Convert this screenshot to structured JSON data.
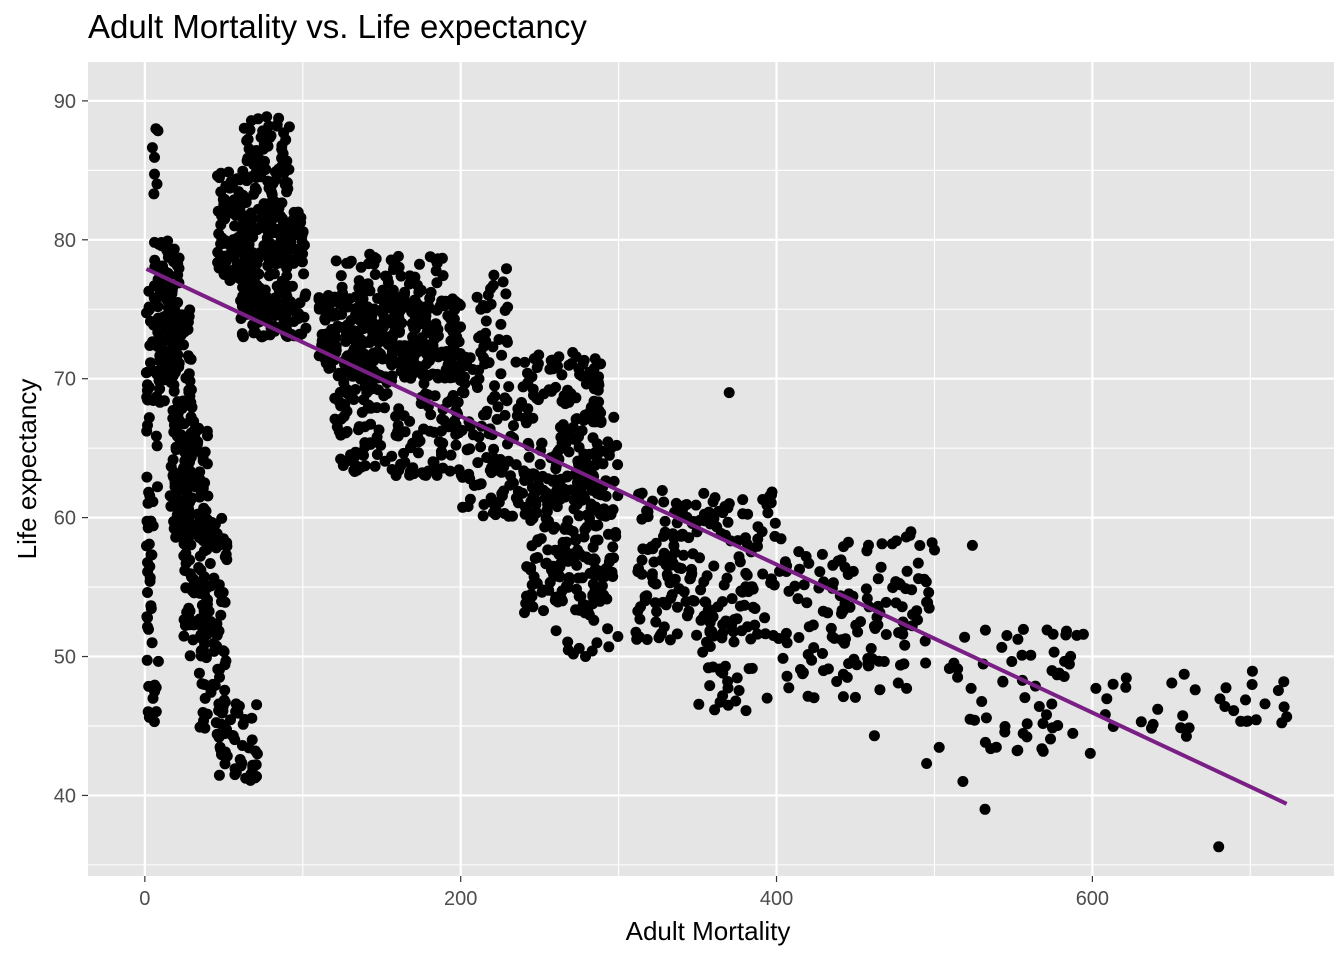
{
  "chart_data": {
    "type": "scatter",
    "title": "Adult Mortality vs. Life expectancy",
    "xlabel": "Adult Mortality",
    "ylabel": "Life expectancy",
    "xlim": [
      -36,
      753
    ],
    "ylim": [
      34.2,
      92.8
    ],
    "xticks": [
      0,
      200,
      400,
      600
    ],
    "yticks": [
      40,
      50,
      60,
      70,
      80,
      90
    ],
    "grid": true,
    "colors": {
      "panel": "#e5e5e5",
      "grid": "#ffffff",
      "points": "#000000",
      "trend": "#7a1f85"
    },
    "trend_line": {
      "x": [
        1,
        723
      ],
      "y": [
        77.9,
        39.4
      ]
    },
    "clusters": [
      {
        "x": [
          1,
          4
        ],
        "y": [
          45,
          78
        ],
        "n": 45
      },
      {
        "x": [
          4,
          9
        ],
        "y": [
          45,
          88
        ],
        "n": 35
      },
      {
        "x": [
          8,
          22
        ],
        "y": [
          68,
          80
        ],
        "n": 120
      },
      {
        "x": [
          16,
          30
        ],
        "y": [
          58,
          75
        ],
        "n": 120
      },
      {
        "x": [
          24,
          40
        ],
        "y": [
          50,
          67
        ],
        "n": 110
      },
      {
        "x": [
          34,
          52
        ],
        "y": [
          44,
          60
        ],
        "n": 90
      },
      {
        "x": [
          46,
          72
        ],
        "y": [
          41,
          47
        ],
        "n": 40
      },
      {
        "x": [
          46,
          66
        ],
        "y": [
          77,
          85
        ],
        "n": 90
      },
      {
        "x": [
          60,
          102
        ],
        "y": [
          73,
          82
        ],
        "n": 230
      },
      {
        "x": [
          62,
          92
        ],
        "y": [
          82,
          89
        ],
        "n": 80
      },
      {
        "x": [
          110,
          200
        ],
        "y": [
          70,
          76
        ],
        "n": 330
      },
      {
        "x": [
          120,
          200
        ],
        "y": [
          63,
          72
        ],
        "n": 190
      },
      {
        "x": [
          120,
          190
        ],
        "y": [
          75,
          79
        ],
        "n": 70
      },
      {
        "x": [
          200,
          290
        ],
        "y": [
          60,
          72
        ],
        "n": 250
      },
      {
        "x": [
          210,
          230
        ],
        "y": [
          72,
          78
        ],
        "n": 25
      },
      {
        "x": [
          240,
          300
        ],
        "y": [
          53,
          64
        ],
        "n": 160
      },
      {
        "x": [
          260,
          300
        ],
        "y": [
          50,
          68
        ],
        "n": 60
      },
      {
        "x": [
          310,
          400
        ],
        "y": [
          51,
          62
        ],
        "n": 200
      },
      {
        "x": [
          350,
          395
        ],
        "y": [
          46,
          52
        ],
        "n": 30
      },
      {
        "x": [
          400,
          500
        ],
        "y": [
          47,
          59
        ],
        "n": 140
      },
      {
        "x": [
          500,
          600
        ],
        "y": [
          43,
          52
        ],
        "n": 60
      },
      {
        "x": [
          600,
          725
        ],
        "y": [
          44,
          49
        ],
        "n": 35
      }
    ],
    "outliers": [
      [
        7,
        88
      ],
      [
        370,
        69
      ],
      [
        532,
        39
      ],
      [
        680,
        36.3
      ],
      [
        524,
        58
      ],
      [
        518,
        41
      ],
      [
        495,
        42.3
      ],
      [
        462,
        44.3
      ],
      [
        57,
        41.5
      ],
      [
        48,
        43.3
      ],
      [
        68,
        44
      ],
      [
        279,
        50
      ],
      [
        293,
        52
      ]
    ]
  }
}
